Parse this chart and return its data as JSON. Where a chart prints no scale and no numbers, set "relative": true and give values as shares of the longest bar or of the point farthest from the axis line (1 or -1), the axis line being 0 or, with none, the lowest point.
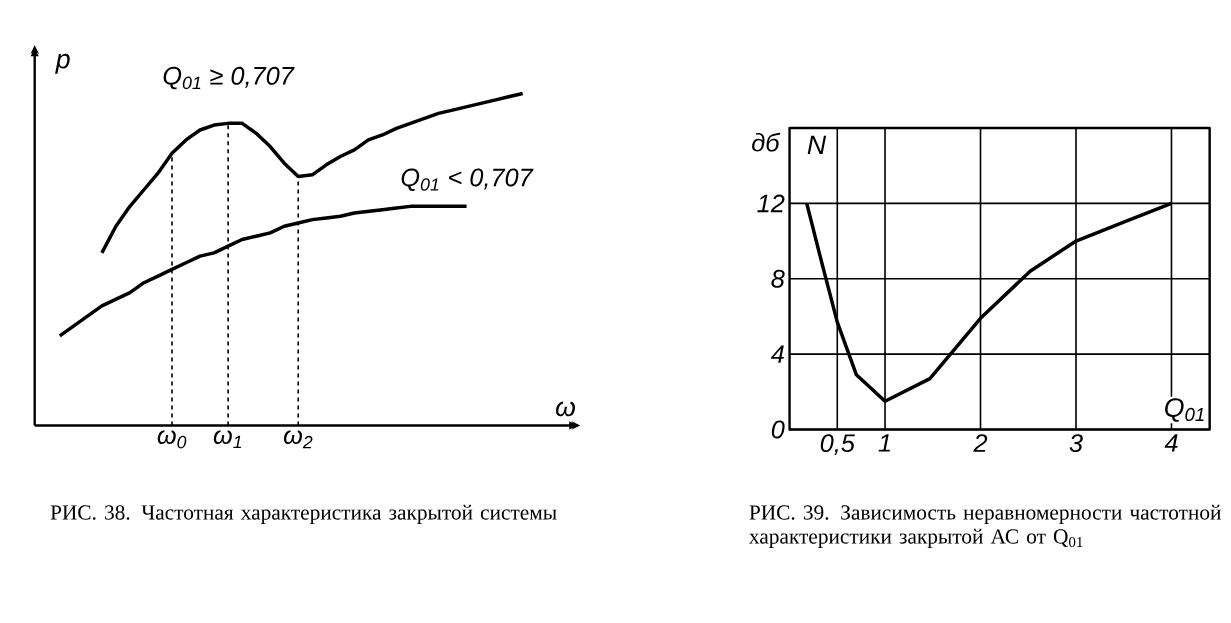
{
  "chart_data": [
    {
      "type": "line",
      "relative": true,
      "xlabel": "ω",
      "ylabel": "p",
      "categories": [
        null,
        null,
        null,
        null,
        null,
        null,
        null,
        null,
        "ω$_{0}$",
        null,
        null,
        null,
        "ω$_{1}$",
        null,
        null,
        null,
        null,
        "ω$_{2}$",
        null,
        null,
        null,
        null,
        null,
        null,
        null,
        null,
        null,
        null,
        null,
        null,
        null,
        null,
        null,
        null
      ],
      "ref_lines": [
        {
          "axis": "x",
          "value": "ω$_{0}$",
          "line_style": "dashed"
        },
        {
          "axis": "x",
          "value": "ω$_{1}$",
          "line_style": "dashed"
        },
        {
          "axis": "x",
          "value": "ω$_{2}$",
          "line_style": "dashed"
        }
      ],
      "series": [
        {
          "name": "Q$_{01}$ ≥ 0,707",
          "color": "#000000",
          "values": [
            null,
            null,
            null,
            0.52,
            0.6,
            0.66,
            0.71,
            0.76,
            0.82,
            0.86,
            0.89,
            0.905,
            0.91,
            0.91,
            0.88,
            0.84,
            0.79,
            0.75,
            0.755,
            0.785,
            0.81,
            0.83,
            0.86,
            0.875,
            0.895,
            0.91,
            0.925,
            0.94,
            0.95,
            0.96,
            0.97,
            0.98,
            0.99,
            1.0
          ]
        },
        {
          "name": "Q$_{01}$ < 0,707",
          "color": "#000000",
          "values": [
            0.27,
            0.3,
            0.33,
            0.36,
            0.38,
            0.4,
            0.43,
            0.45,
            0.47,
            0.49,
            0.51,
            0.52,
            0.54,
            0.56,
            0.57,
            0.58,
            0.6,
            0.61,
            0.62,
            0.625,
            0.63,
            0.64,
            0.645,
            0.65,
            0.655,
            0.66,
            0.66,
            0.66,
            0.66,
            0.66,
            null,
            null,
            null,
            null
          ]
        }
      ],
      "annotations": [
        "РИС. 38. Частотная характеристика закрытой системы"
      ]
    },
    {
      "type": "line",
      "xlabel": "Q$_{01}$",
      "ylabel": "N",
      "xlim": [
        0,
        4.4
      ],
      "ylim": [
        0,
        16
      ],
      "xticks": [
        {
          "value": 0.5,
          "label": "0,5"
        },
        1,
        2,
        3,
        4
      ],
      "yticks": [
        0,
        4,
        8,
        12
      ],
      "grid": true,
      "series": [
        {
          "color": "#000000",
          "x": [
            0.18,
            0.33,
            0.5,
            0.7,
            1,
            1.47,
            2,
            2.52,
            3,
            3.5,
            4
          ],
          "values": [
            12,
            9,
            5.7,
            2.9,
            1.5,
            2.7,
            5.9,
            8.4,
            10,
            11,
            12
          ]
        }
      ],
      "annotations": [
        "дб",
        "РИС. 39. Зависимость неравномерности частотной характеристики закрытой АС от Q$_{01}$"
      ]
    }
  ]
}
